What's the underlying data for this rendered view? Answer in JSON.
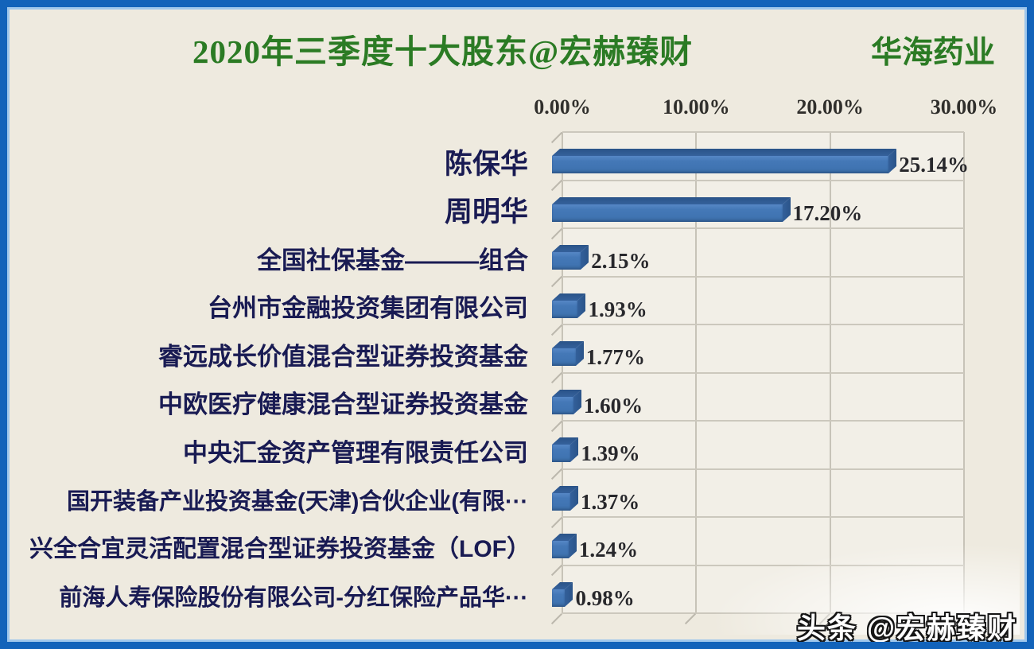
{
  "header": {
    "title": "2020年三季度十大股东@宏赫臻财",
    "stock_name": "华海药业"
  },
  "watermark": {
    "text": "头条 @宏赫臻财"
  },
  "colors": {
    "frame_blue": "#1263ba",
    "background": "#eeeadf",
    "plot_background": "#f2efe7",
    "gridline": "#c7c3b8",
    "bar_front": "#4478b7",
    "bar_bevel": "#2f5a94",
    "title_green": "#2b7b24",
    "category_label_navy": "#191b53",
    "value_text": "#28282c",
    "watermark_fill": "#ffffff",
    "watermark_outline": "#151515"
  },
  "chart_data": {
    "type": "bar",
    "orientation": "horizontal",
    "bar_style": "3d",
    "title": "2020年三季度十大股东@宏赫臻财",
    "subtitle_right": "华海药业",
    "categories": [
      "陈保华",
      "周明华",
      "全国社保基金———组合",
      "台州市金融投资集团有限公司",
      "睿远成长价值混合型证券投资基金",
      "中欧医疗健康混合型证券投资基金",
      "中央汇金资产管理有限责任公司",
      "国开装备产业投资基金(天津)合伙企业(有限···",
      "兴全合宜灵活配置混合型证券投资基金（LOF）",
      "前海人寿保险股份有限公司-分红保险产品华···"
    ],
    "values": [
      25.14,
      17.2,
      2.15,
      1.93,
      1.77,
      1.6,
      1.39,
      1.37,
      1.24,
      0.98
    ],
    "value_labels": [
      "25.14%",
      "17.20%",
      "2.15%",
      "1.93%",
      "1.77%",
      "1.60%",
      "1.39%",
      "1.37%",
      "1.24%",
      "0.98%"
    ],
    "x_ticks": [
      "0.00%",
      "10.00%",
      "20.00%",
      "30.00%"
    ],
    "x_tick_values": [
      0,
      10,
      20,
      30
    ],
    "xlim": [
      0,
      30
    ],
    "grid": "vertical",
    "legend": "none",
    "xlabel": "",
    "ylabel": ""
  }
}
